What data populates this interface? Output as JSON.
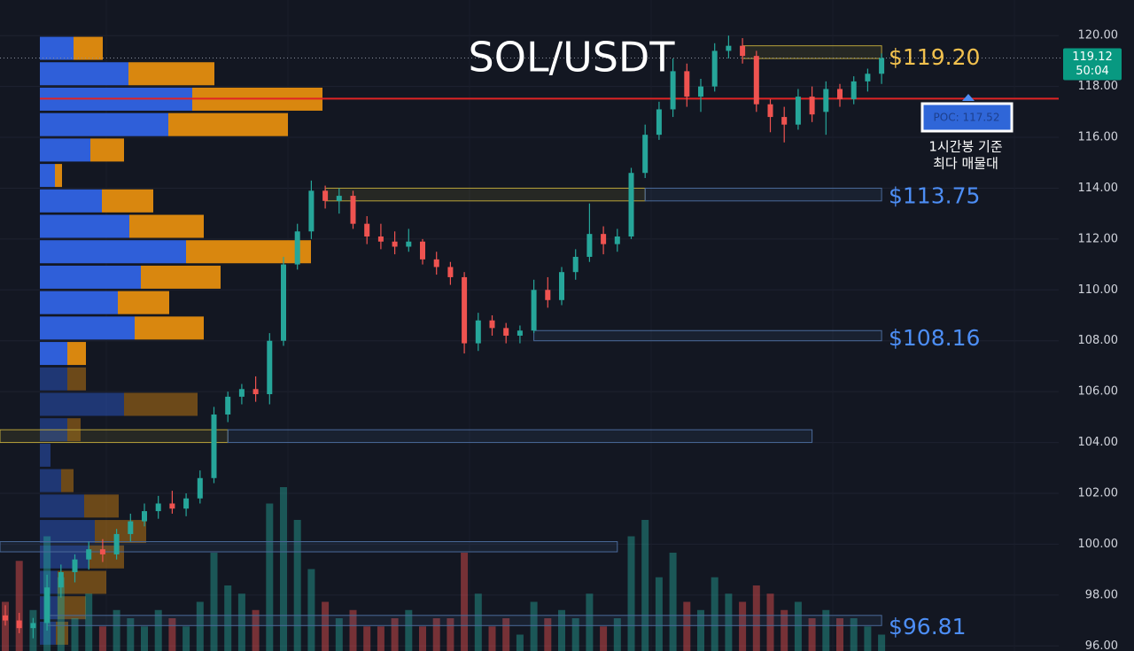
{
  "chart_data": {
    "type": "candlestick",
    "title": "SOL/USDT",
    "ylim": [
      95.8,
      121.4
    ],
    "yticks": [
      {
        "value": 96,
        "label": "96.00"
      },
      {
        "value": 98,
        "label": "98.00"
      },
      {
        "value": 100,
        "label": "100.00"
      },
      {
        "value": 102,
        "label": "102.00"
      },
      {
        "value": 104,
        "label": "104.00"
      },
      {
        "value": 106,
        "label": "106.00"
      },
      {
        "value": 108,
        "label": "108.00"
      },
      {
        "value": 110,
        "label": "110.00"
      },
      {
        "value": 112,
        "label": "112.00"
      },
      {
        "value": 114,
        "label": "114.00"
      },
      {
        "value": 116,
        "label": "116.00"
      },
      {
        "value": 118,
        "label": "118.00"
      },
      {
        "value": 120,
        "label": "120.00"
      }
    ],
    "grid": true,
    "up_color": "#26a69a",
    "down_color": "#ef5350",
    "candles": [
      [
        97.2,
        97.6,
        96.8,
        97.0
      ],
      [
        97.0,
        97.3,
        96.5,
        96.7
      ],
      [
        96.7,
        97.1,
        96.3,
        96.9
      ],
      [
        96.9,
        98.8,
        96.6,
        98.3
      ],
      [
        98.3,
        99.2,
        97.9,
        98.9
      ],
      [
        98.9,
        99.6,
        98.5,
        99.4
      ],
      [
        99.4,
        100.1,
        99.0,
        99.8
      ],
      [
        99.8,
        100.2,
        99.3,
        99.6
      ],
      [
        99.6,
        100.6,
        99.4,
        100.4
      ],
      [
        100.4,
        101.2,
        100.1,
        100.9
      ],
      [
        100.9,
        101.6,
        100.7,
        101.3
      ],
      [
        101.3,
        101.9,
        101.0,
        101.6
      ],
      [
        101.6,
        102.1,
        101.2,
        101.4
      ],
      [
        101.4,
        102.0,
        101.1,
        101.8
      ],
      [
        101.8,
        102.9,
        101.6,
        102.6
      ],
      [
        102.6,
        105.4,
        102.4,
        105.1
      ],
      [
        105.1,
        106.0,
        104.8,
        105.8
      ],
      [
        105.8,
        106.3,
        105.5,
        106.1
      ],
      [
        106.1,
        106.6,
        105.6,
        105.9
      ],
      [
        105.9,
        108.3,
        105.5,
        108.0
      ],
      [
        108.0,
        111.3,
        107.8,
        111.0
      ],
      [
        111.0,
        112.6,
        110.8,
        112.3
      ],
      [
        112.3,
        114.3,
        112.0,
        113.9
      ],
      [
        113.9,
        114.1,
        113.2,
        113.5
      ],
      [
        113.5,
        114.0,
        113.0,
        113.7
      ],
      [
        113.7,
        113.9,
        112.4,
        112.6
      ],
      [
        112.6,
        112.9,
        111.8,
        112.1
      ],
      [
        112.1,
        112.6,
        111.6,
        111.9
      ],
      [
        111.9,
        112.3,
        111.4,
        111.7
      ],
      [
        111.7,
        112.4,
        111.5,
        111.9
      ],
      [
        111.9,
        112.0,
        111.0,
        111.2
      ],
      [
        111.2,
        111.5,
        110.6,
        110.9
      ],
      [
        110.9,
        111.1,
        110.2,
        110.5
      ],
      [
        110.5,
        110.7,
        107.5,
        107.9
      ],
      [
        107.9,
        109.1,
        107.6,
        108.8
      ],
      [
        108.8,
        109.0,
        108.2,
        108.5
      ],
      [
        108.5,
        108.7,
        107.9,
        108.2
      ],
      [
        108.2,
        108.6,
        107.9,
        108.4
      ],
      [
        108.4,
        110.4,
        108.3,
        110.0
      ],
      [
        110.0,
        110.5,
        109.3,
        109.6
      ],
      [
        109.6,
        110.9,
        109.4,
        110.7
      ],
      [
        110.7,
        111.6,
        110.4,
        111.3
      ],
      [
        111.3,
        113.4,
        111.1,
        112.2
      ],
      [
        112.2,
        112.5,
        111.4,
        111.8
      ],
      [
        111.8,
        112.4,
        111.5,
        112.1
      ],
      [
        112.1,
        114.8,
        112.0,
        114.6
      ],
      [
        114.6,
        116.5,
        114.4,
        116.1
      ],
      [
        116.1,
        117.4,
        115.9,
        117.1
      ],
      [
        117.1,
        119.1,
        116.8,
        118.6
      ],
      [
        118.6,
        118.9,
        117.2,
        117.6
      ],
      [
        117.6,
        118.3,
        117.0,
        118.0
      ],
      [
        118.0,
        119.7,
        117.8,
        119.4
      ],
      [
        119.4,
        120.0,
        119.1,
        119.6
      ],
      [
        119.6,
        119.9,
        118.9,
        119.2
      ],
      [
        119.2,
        119.4,
        117.0,
        117.3
      ],
      [
        117.3,
        117.5,
        116.2,
        116.8
      ],
      [
        116.8,
        117.2,
        115.8,
        116.5
      ],
      [
        116.5,
        117.9,
        116.3,
        117.6
      ],
      [
        117.6,
        118.0,
        116.6,
        116.9
      ],
      [
        117.0,
        118.2,
        116.1,
        117.9
      ],
      [
        117.9,
        118.1,
        117.2,
        117.5
      ],
      [
        117.5,
        118.4,
        117.3,
        118.2
      ],
      [
        118.2,
        118.7,
        117.8,
        118.5
      ],
      [
        118.5,
        119.3,
        118.1,
        119.12
      ]
    ],
    "volume": [
      30,
      55,
      25,
      70,
      45,
      20,
      35,
      15,
      25,
      20,
      15,
      25,
      20,
      15,
      30,
      60,
      40,
      35,
      25,
      90,
      100,
      80,
      50,
      30,
      20,
      25,
      15,
      15,
      20,
      25,
      15,
      20,
      20,
      60,
      35,
      15,
      20,
      10,
      30,
      20,
      25,
      20,
      35,
      15,
      20,
      70,
      80,
      45,
      60,
      30,
      25,
      45,
      35,
      30,
      40,
      35,
      25,
      30,
      20,
      25,
      20,
      20,
      15,
      10
    ],
    "profile": {
      "prices": [
        119.5,
        118.5,
        117.5,
        116.5,
        115.5,
        114.5,
        113.5,
        112.5,
        111.5,
        110.5,
        109.5,
        108.5,
        107.5,
        106.5,
        105.5,
        104.5,
        103.5,
        102.5,
        101.5,
        100.5,
        99.5,
        98.5,
        97.5,
        96.5
      ],
      "buy": [
        38,
        100,
        172,
        145,
        57,
        17,
        70,
        101,
        165,
        114,
        88,
        107,
        31,
        31,
        95,
        31,
        12,
        24,
        50,
        62,
        55,
        20,
        20,
        18
      ],
      "sell": [
        33,
        97,
        147,
        135,
        38,
        8,
        58,
        84,
        141,
        90,
        58,
        78,
        21,
        21,
        83,
        15,
        0,
        14,
        39,
        58,
        40,
        55,
        32,
        14
      ],
      "buy_color": "#2f5fd9",
      "sell_color": "#d9870f",
      "value_area": [
        107,
        120
      ]
    },
    "zones": [
      {
        "low": 119.1,
        "high": 119.6,
        "from": 53,
        "to": 63,
        "color": "#b8a23a"
      },
      {
        "low": 113.5,
        "high": 114.0,
        "from": 23,
        "to": 46,
        "color": "#b8a23a"
      },
      {
        "low": 113.5,
        "high": 114.0,
        "from": 46,
        "to": 63,
        "color": "#4a6a9a"
      },
      {
        "low": 108.0,
        "high": 108.4,
        "from": 38,
        "to": 63,
        "color": "#4a6a9a"
      },
      {
        "low": 104.0,
        "high": 104.5,
        "from": 0,
        "to": 16,
        "color": "#b8a23a"
      },
      {
        "low": 104.0,
        "high": 104.5,
        "from": 16,
        "to": 58,
        "color": "#4a6a9a"
      },
      {
        "low": 99.7,
        "high": 100.1,
        "from": 0,
        "to": 44,
        "color": "#4a6a9a"
      },
      {
        "low": 96.8,
        "high": 97.2,
        "from": 3,
        "to": 63,
        "color": "#4a6a9a"
      }
    ],
    "levels": [
      {
        "value": 119.2,
        "label": "$119.20",
        "color": "#f2c14e"
      },
      {
        "value": 113.75,
        "label": "$113.75",
        "color": "#4d8ef5"
      },
      {
        "value": 108.16,
        "label": "$108.16",
        "color": "#4d8ef5"
      },
      {
        "value": 96.81,
        "label": "$96.81",
        "color": "#4d8ef5"
      }
    ],
    "poc": {
      "value": 117.52,
      "label": "POC: 117.52",
      "color": "#e02424"
    },
    "poc_note": [
      "1시간봉 기준",
      "최다 매물대"
    ],
    "last_price": 119.12,
    "countdown": "50:04"
  }
}
